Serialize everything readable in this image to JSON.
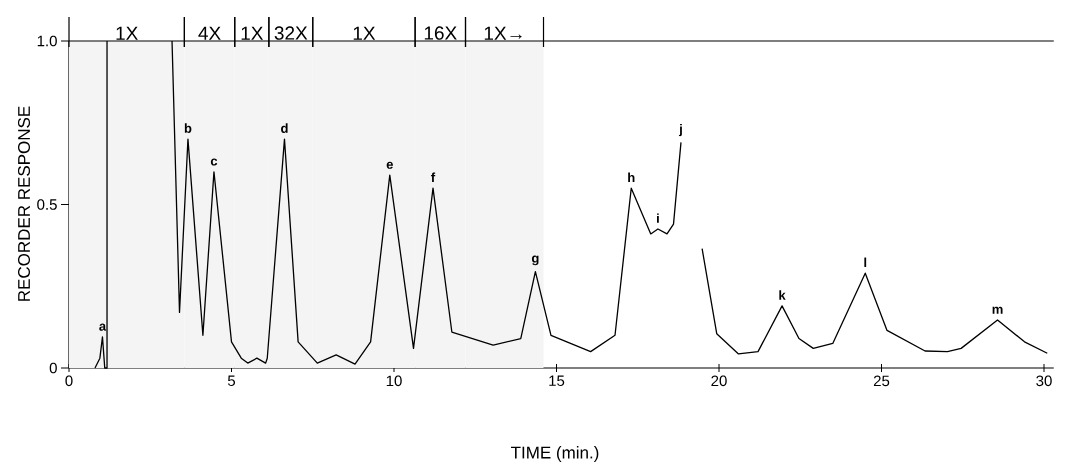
{
  "chart_data": {
    "type": "line",
    "xlabel": "TIME (min.)",
    "ylabel": "RECORDER RESPONSE",
    "x": [
      0.8,
      0.95,
      1.03,
      1.1,
      1.17,
      1.17,
      2.2,
      3.17,
      3.4,
      3.66,
      4.12,
      4.46,
      5.0,
      5.3,
      5.5,
      5.78,
      6.05,
      6.1,
      6.63,
      7.05,
      7.64,
      8.22,
      8.8,
      9.28,
      9.87,
      10.6,
      11.2,
      11.78,
      13.05,
      13.9,
      14.35,
      14.83,
      16.05,
      16.8,
      17.3,
      17.6,
      17.9,
      18.12,
      18.4,
      18.6,
      18.83,
      19.2,
      19.48,
      19.93,
      20.6,
      21.2,
      21.94,
      22.46,
      22.9,
      23.5,
      24.5,
      25.17,
      26.34,
      27.03,
      27.45,
      28.57,
      29.4,
      30.1
    ],
    "series": [
      {
        "color": "#000000",
        "values": [
          0,
          0.03,
          0.095,
          0.0,
          0,
          1.0,
          null,
          1.0,
          0.17,
          0.7,
          0.1,
          0.6,
          0.08,
          0.03,
          0.015,
          0.03,
          0.015,
          0.03,
          0.7,
          0.08,
          0.015,
          0.04,
          0.012,
          0.08,
          0.59,
          0.06,
          0.55,
          0.11,
          0.07,
          0.09,
          0.295,
          0.1,
          0.05,
          0.1,
          0.55,
          0.48,
          0.41,
          0.425,
          0.41,
          0.44,
          0.69,
          null,
          0.365,
          0.105,
          0.043,
          0.05,
          0.19,
          0.09,
          0.06,
          0.075,
          0.29,
          0.115,
          0.052,
          0.05,
          0.06,
          0.147,
          0.08,
          0.045
        ]
      }
    ],
    "xlim": [
      0,
      30.3
    ],
    "ylim": [
      0,
      1.0
    ],
    "xticks": [
      0,
      5,
      10,
      15,
      20,
      25,
      30
    ],
    "yticks": [
      0,
      0.5,
      {
        "value": 1.0,
        "label": "1.0"
      }
    ],
    "ref_lines": [
      {
        "axis": "y",
        "value": 1.0
      }
    ],
    "bands": [
      {
        "axis": "x",
        "from": 0,
        "to": 3.55,
        "label": "1X",
        "color": "#f4f4f4"
      },
      {
        "axis": "x",
        "from": 3.55,
        "to": 5.1,
        "label": "4X",
        "color": "#f4f4f4"
      },
      {
        "axis": "x",
        "from": 5.1,
        "to": 6.15,
        "label": "1X",
        "color": "#f4f4f4"
      },
      {
        "axis": "x",
        "from": 6.15,
        "to": 7.5,
        "label": "32X",
        "color": "#f4f4f4"
      },
      {
        "axis": "x",
        "from": 7.5,
        "to": 10.65,
        "label": "1X",
        "color": "#f4f4f4"
      },
      {
        "axis": "x",
        "from": 10.65,
        "to": 12.2,
        "label": "16X",
        "color": "#f4f4f4"
      },
      {
        "axis": "x",
        "from": 12.2,
        "to": 14.6,
        "label": "1X→",
        "color": "#f4f4f4"
      }
    ],
    "annotations": [
      {
        "text": "a",
        "x": 1.03,
        "y": 0.095
      },
      {
        "text": "b",
        "x": 3.66,
        "y": 0.7
      },
      {
        "text": "c",
        "x": 4.46,
        "y": 0.6
      },
      {
        "text": "d",
        "x": 6.63,
        "y": 0.7
      },
      {
        "text": "e",
        "x": 9.87,
        "y": 0.59
      },
      {
        "text": "f",
        "x": 11.2,
        "y": 0.55
      },
      {
        "text": "g",
        "x": 14.35,
        "y": 0.295
      },
      {
        "text": "h",
        "x": 17.3,
        "y": 0.55
      },
      {
        "text": "i",
        "x": 18.12,
        "y": 0.425
      },
      {
        "text": "j",
        "x": 18.83,
        "y": 0.69
      },
      {
        "text": "k",
        "x": 21.94,
        "y": 0.19
      },
      {
        "text": "l",
        "x": 24.5,
        "y": 0.29
      },
      {
        "text": "m",
        "x": 28.57,
        "y": 0.147
      }
    ],
    "marker": "none",
    "line_style": "solid"
  }
}
